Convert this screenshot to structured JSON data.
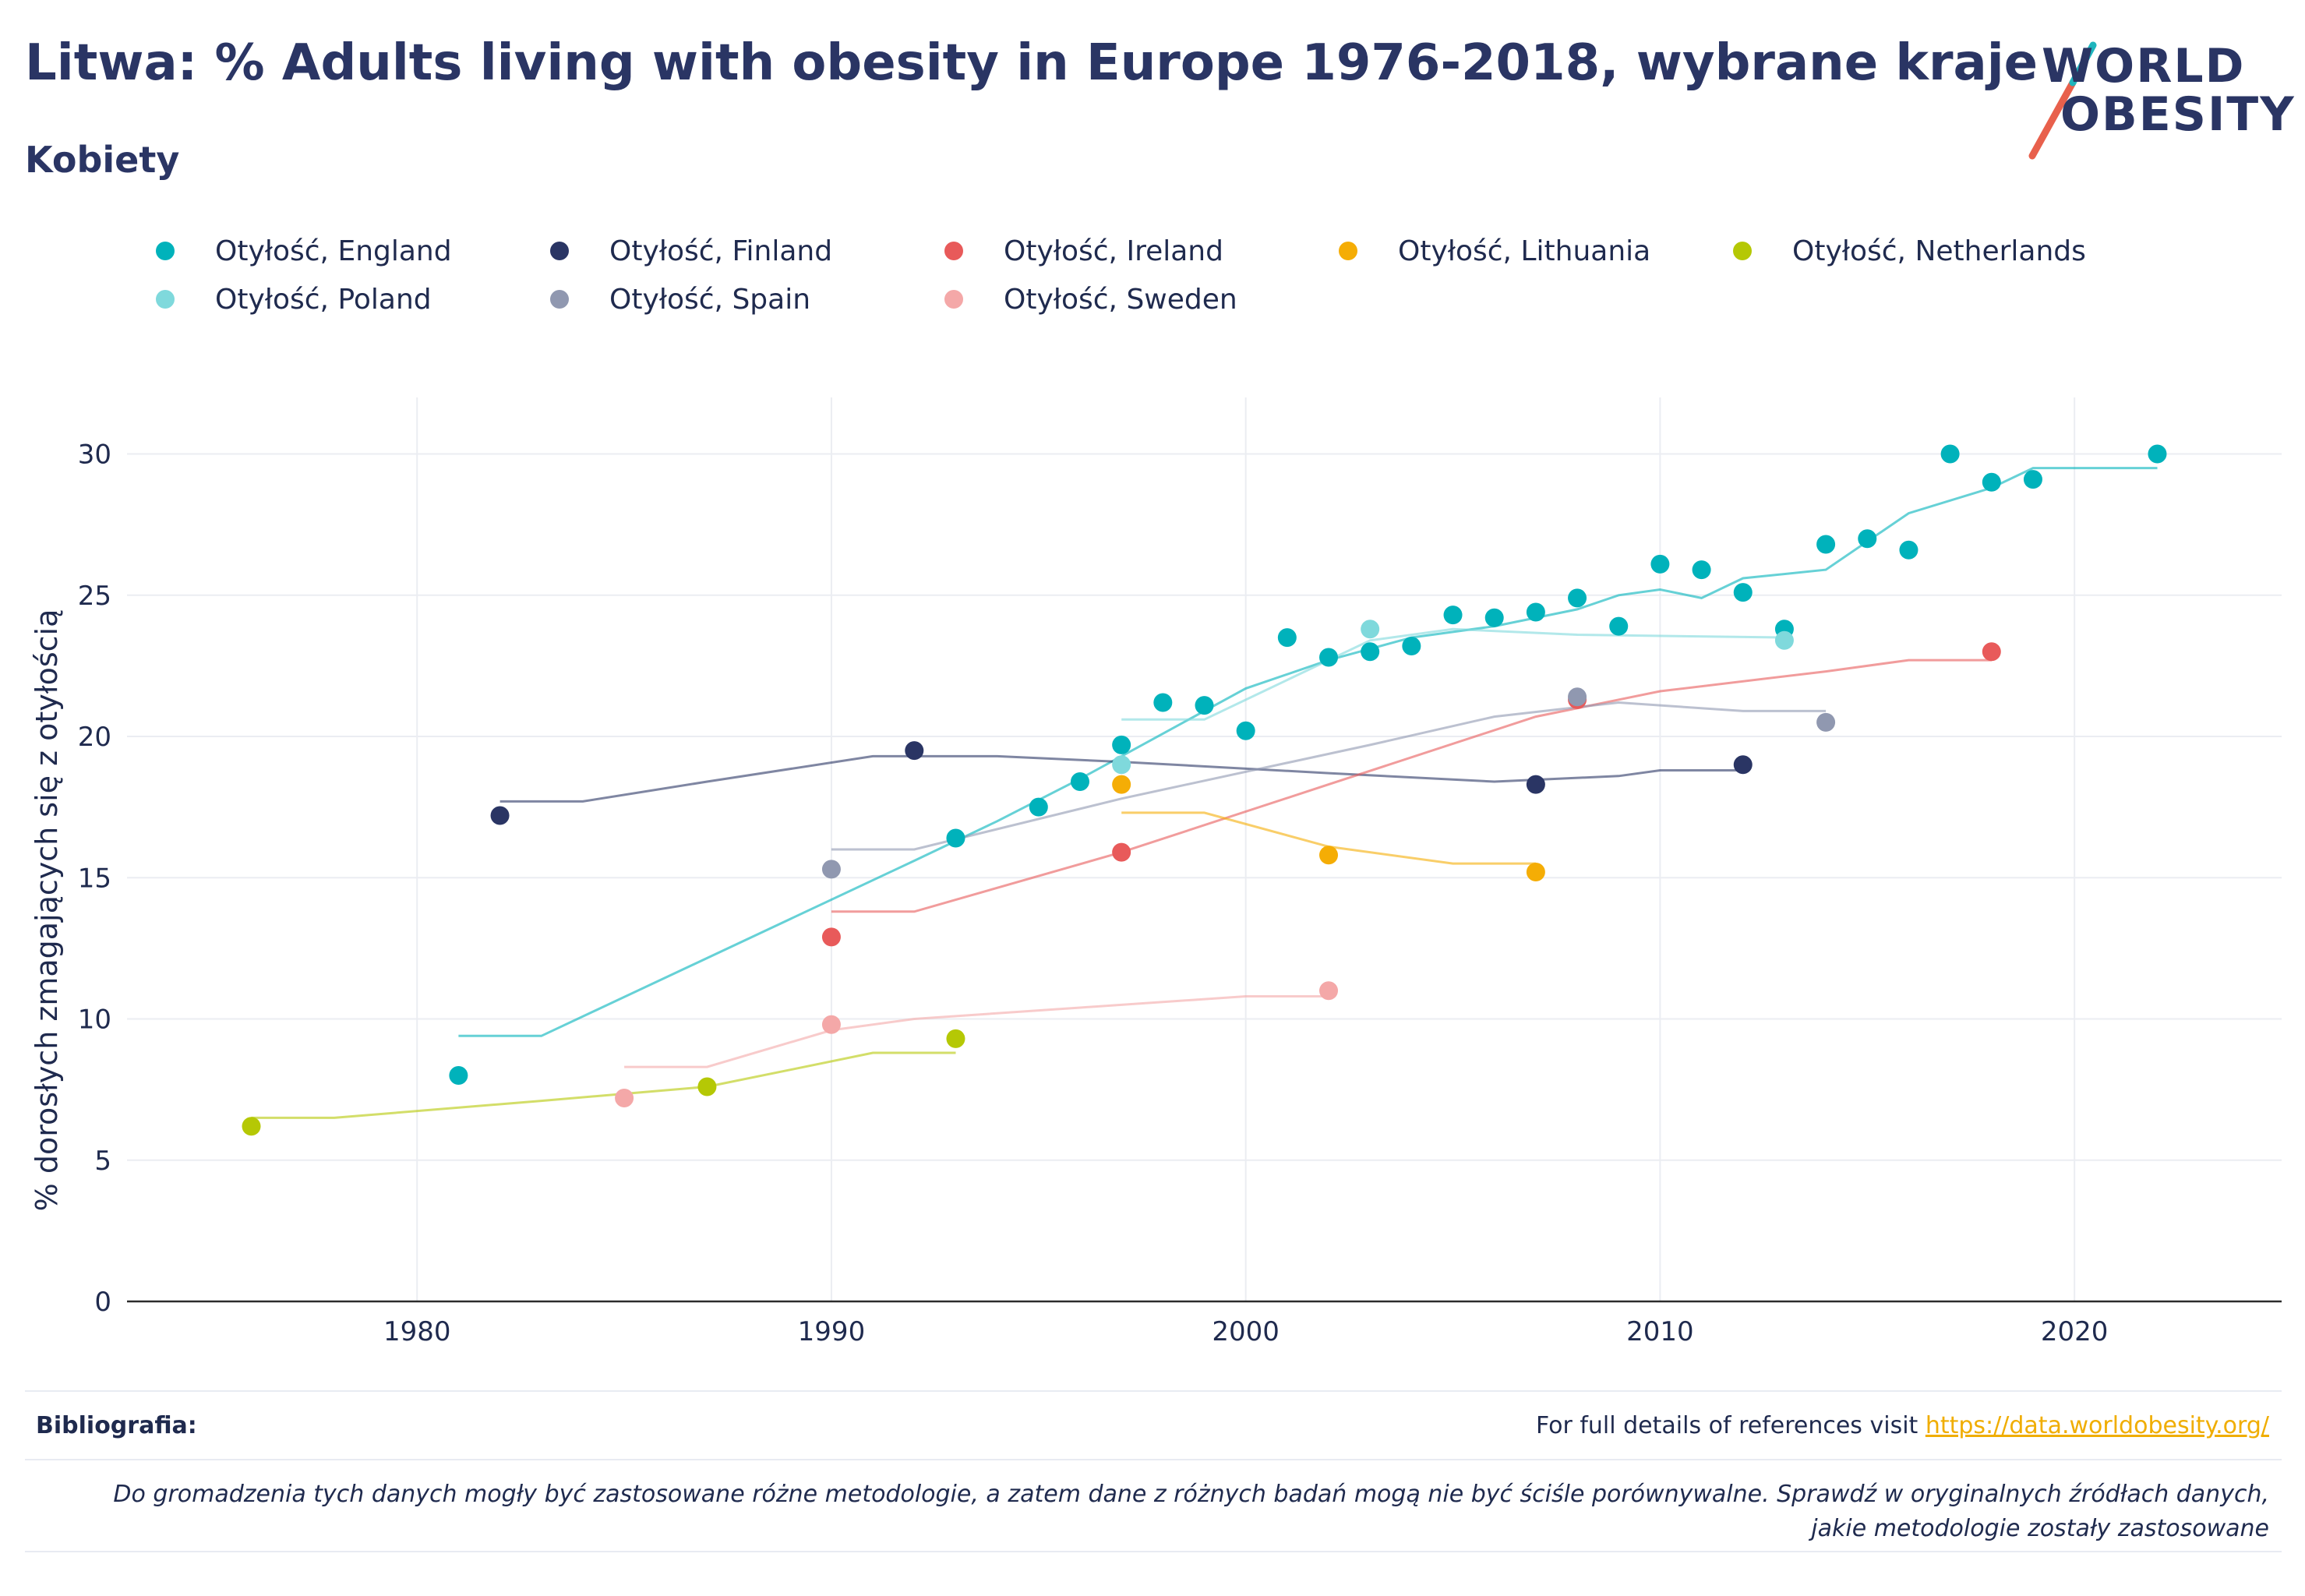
{
  "header": {
    "title": "Litwa: % Adults living with obesity in Europe 1976-2018, wybrane kraje",
    "subtitle": "Kobiety"
  },
  "logo": {
    "line1": "WORLD",
    "line2": "OBESITY",
    "accent_teal": "#1fb5bd",
    "accent_red": "#e8604c"
  },
  "legend": {
    "position": "top",
    "columns": 5
  },
  "chart_data": {
    "type": "scatter",
    "title": "Litwa: % Adults living with obesity in Europe 1976-2018, wybrane kraje",
    "subtitle": "Kobiety",
    "xlabel": "",
    "ylabel": "% dorosłych zmagających się z otyłością",
    "xlim": [
      1973,
      2025
    ],
    "ylim": [
      0,
      32
    ],
    "xticks": [
      1980,
      1990,
      2000,
      2010,
      2020
    ],
    "yticks": [
      0,
      5,
      10,
      15,
      20,
      25,
      30
    ],
    "grid": true,
    "series": [
      {
        "name": "Otyłość, England",
        "color": "#00b2bb",
        "points": [
          [
            1981,
            8.0
          ],
          [
            1993,
            16.4
          ],
          [
            1995,
            17.5
          ],
          [
            1996,
            18.4
          ],
          [
            1997,
            19.7
          ],
          [
            1998,
            21.2
          ],
          [
            1999,
            21.1
          ],
          [
            2000,
            20.2
          ],
          [
            2001,
            23.5
          ],
          [
            2002,
            22.8
          ],
          [
            2003,
            23.0
          ],
          [
            2004,
            23.2
          ],
          [
            2005,
            24.3
          ],
          [
            2006,
            24.2
          ],
          [
            2007,
            24.4
          ],
          [
            2008,
            24.9
          ],
          [
            2009,
            23.9
          ],
          [
            2010,
            26.1
          ],
          [
            2011,
            25.9
          ],
          [
            2012,
            25.1
          ],
          [
            2013,
            23.8
          ],
          [
            2014,
            26.8
          ],
          [
            2015,
            27.0
          ],
          [
            2016,
            26.6
          ],
          [
            2017,
            30.0
          ],
          [
            2018,
            29.0
          ],
          [
            2019,
            29.1
          ],
          [
            2022,
            30.0
          ]
        ]
      },
      {
        "name": "Otyłość, Finland",
        "color": "#2a3564",
        "points": [
          [
            1982,
            17.2
          ],
          [
            1992,
            19.5
          ],
          [
            2007,
            18.3
          ],
          [
            2012,
            19.0
          ]
        ]
      },
      {
        "name": "Otyłość, Ireland",
        "color": "#e85a5a",
        "points": [
          [
            1990,
            12.9
          ],
          [
            1997,
            15.9
          ],
          [
            2008,
            21.3
          ],
          [
            2018,
            23.0
          ]
        ]
      },
      {
        "name": "Otyłość, Lithuania",
        "color": "#f5ad05",
        "points": [
          [
            1997,
            18.3
          ],
          [
            2002,
            15.8
          ],
          [
            2007,
            15.2
          ]
        ]
      },
      {
        "name": "Otyłość, Netherlands",
        "color": "#b5c805",
        "points": [
          [
            1976,
            6.2
          ],
          [
            1987,
            7.6
          ],
          [
            1993,
            9.3
          ]
        ]
      },
      {
        "name": "Otyłość, Poland",
        "color": "#7fd9dc",
        "points": [
          [
            1997,
            19.0
          ],
          [
            2003,
            23.8
          ],
          [
            2013,
            23.4
          ]
        ]
      },
      {
        "name": "Otyłość, Spain",
        "color": "#9098b0",
        "points": [
          [
            1990,
            15.3
          ],
          [
            2008,
            21.4
          ],
          [
            2014,
            20.5
          ]
        ]
      },
      {
        "name": "Otyłość, Sweden",
        "color": "#f4a8a8",
        "points": [
          [
            1985,
            7.2
          ],
          [
            1990,
            9.8
          ],
          [
            2002,
            11.0
          ]
        ]
      }
    ],
    "trend_lines": [
      {
        "series": "Otyłość, England",
        "color": "#00b2bb",
        "points": [
          [
            1981,
            9.4
          ],
          [
            1983,
            9.4
          ],
          [
            1992,
            15.6
          ],
          [
            1994,
            17.0
          ],
          [
            1996,
            18.5
          ],
          [
            1998,
            20.1
          ],
          [
            2000,
            21.7
          ],
          [
            2002,
            22.7
          ],
          [
            2004,
            23.5
          ],
          [
            2006,
            23.9
          ],
          [
            2008,
            24.5
          ],
          [
            2009,
            25.0
          ],
          [
            2010,
            25.2
          ],
          [
            2011,
            24.9
          ],
          [
            2012,
            25.6
          ],
          [
            2014,
            25.9
          ],
          [
            2016,
            27.9
          ],
          [
            2018,
            28.8
          ],
          [
            2019,
            29.5
          ],
          [
            2022,
            29.5
          ]
        ]
      },
      {
        "series": "Otyłość, Finland",
        "color": "#2a3564",
        "points": [
          [
            1982,
            17.7
          ],
          [
            1984,
            17.7
          ],
          [
            1987,
            18.4
          ],
          [
            1991,
            19.3
          ],
          [
            1994,
            19.3
          ],
          [
            1997,
            19.1
          ],
          [
            2002,
            18.7
          ],
          [
            2006,
            18.4
          ],
          [
            2009,
            18.6
          ],
          [
            2010,
            18.8
          ],
          [
            2012,
            18.8
          ]
        ]
      },
      {
        "series": "Otyłość, Ireland",
        "color": "#e85a5a",
        "points": [
          [
            1990,
            13.8
          ],
          [
            1992,
            13.8
          ],
          [
            1997,
            15.9
          ],
          [
            2002,
            18.3
          ],
          [
            2007,
            20.7
          ],
          [
            2010,
            21.6
          ],
          [
            2014,
            22.3
          ],
          [
            2016,
            22.7
          ],
          [
            2018,
            22.7
          ]
        ]
      },
      {
        "series": "Otyłość, Lithuania",
        "color": "#f5ad05",
        "points": [
          [
            1997,
            17.3
          ],
          [
            1999,
            17.3
          ],
          [
            2002,
            16.1
          ],
          [
            2005,
            15.5
          ],
          [
            2007,
            15.5
          ]
        ]
      },
      {
        "series": "Otyłość, Netherlands",
        "color": "#b5c805",
        "points": [
          [
            1976,
            6.5
          ],
          [
            1978,
            6.5
          ],
          [
            1983,
            7.1
          ],
          [
            1987,
            7.6
          ],
          [
            1989,
            8.2
          ],
          [
            1991,
            8.8
          ],
          [
            1993,
            8.8
          ]
        ]
      },
      {
        "series": "Otyłość, Poland",
        "color": "#7fd9dc",
        "points": [
          [
            1997,
            20.6
          ],
          [
            1999,
            20.6
          ],
          [
            2003,
            23.4
          ],
          [
            2005,
            23.8
          ],
          [
            2008,
            23.6
          ],
          [
            2013,
            23.5
          ]
        ]
      },
      {
        "series": "Otyłość, Spain",
        "color": "#9098b0",
        "points": [
          [
            1990,
            16.0
          ],
          [
            1992,
            16.0
          ],
          [
            1997,
            17.8
          ],
          [
            2003,
            19.7
          ],
          [
            2006,
            20.7
          ],
          [
            2009,
            21.2
          ],
          [
            2012,
            20.9
          ],
          [
            2014,
            20.9
          ]
        ]
      },
      {
        "series": "Otyłość, Sweden",
        "color": "#f4a8a8",
        "points": [
          [
            1985,
            8.3
          ],
          [
            1987,
            8.3
          ],
          [
            1990,
            9.6
          ],
          [
            1992,
            10.0
          ],
          [
            1996,
            10.4
          ],
          [
            2000,
            10.8
          ],
          [
            2002,
            10.8
          ]
        ]
      }
    ]
  },
  "footer": {
    "bibliography_label": "Bibliografia:",
    "reference_text": "For full details of references visit ",
    "reference_link": "https://data.worldobesity.org/",
    "methodology_note": "Do gromadzenia tych danych mogły być zastosowane różne metodologie, a zatem dane z różnych badań mogą nie być ściśle porównywalne. Sprawdź w oryginalnych źródłach danych, jakie metodologie zostały zastosowane"
  }
}
